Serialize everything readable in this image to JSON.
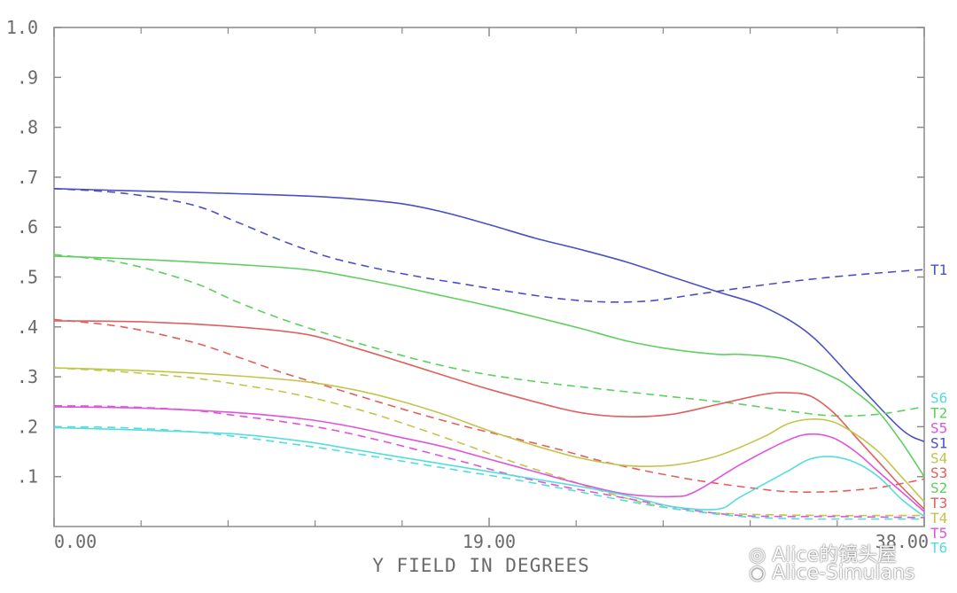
{
  "chart_data": {
    "type": "line",
    "xlabel": "Y FIELD IN DEGREES",
    "ylabel": "",
    "xlim": [
      0,
      38
    ],
    "ylim": [
      0,
      1.0
    ],
    "x_tick_labels": [
      {
        "x": 0,
        "label": "0.00"
      },
      {
        "x": 19,
        "label": "19.00"
      },
      {
        "x": 38,
        "label": "38.00"
      }
    ],
    "x_minor_ticks": [
      3.8,
      7.6,
      11.4,
      15.2,
      22.8,
      26.6,
      30.4,
      34.2
    ],
    "y_tick_labels": [
      {
        "y": 0.1,
        "label": ".1"
      },
      {
        "y": 0.2,
        "label": ".2"
      },
      {
        "y": 0.3,
        "label": ".3"
      },
      {
        "y": 0.4,
        "label": ".4"
      },
      {
        "y": 0.5,
        "label": ".5"
      },
      {
        "y": 0.6,
        "label": ".6"
      },
      {
        "y": 0.7,
        "label": ".7"
      },
      {
        "y": 0.8,
        "label": ".8"
      },
      {
        "y": 0.9,
        "label": ".9"
      },
      {
        "y": 1.0,
        "label": "1.0"
      }
    ],
    "series": [
      {
        "name": "S1",
        "color": "#4a4fc4",
        "dash": "solid",
        "points": [
          [
            0,
            0.677
          ],
          [
            4,
            0.672
          ],
          [
            8,
            0.667
          ],
          [
            12,
            0.66
          ],
          [
            15,
            0.648
          ],
          [
            17,
            0.63
          ],
          [
            19,
            0.605
          ],
          [
            21,
            0.578
          ],
          [
            23,
            0.555
          ],
          [
            25,
            0.53
          ],
          [
            27,
            0.5
          ],
          [
            29,
            0.47
          ],
          [
            31,
            0.44
          ],
          [
            33,
            0.385
          ],
          [
            35,
            0.29
          ],
          [
            37,
            0.195
          ],
          [
            38,
            0.17
          ]
        ]
      },
      {
        "name": "T1",
        "color": "#4a4fc4",
        "dash": "dashed",
        "points": [
          [
            0,
            0.677
          ],
          [
            3,
            0.668
          ],
          [
            6,
            0.645
          ],
          [
            8,
            0.61
          ],
          [
            10,
            0.572
          ],
          [
            12,
            0.54
          ],
          [
            14,
            0.518
          ],
          [
            16,
            0.5
          ],
          [
            18,
            0.485
          ],
          [
            20,
            0.47
          ],
          [
            22,
            0.457
          ],
          [
            24,
            0.45
          ],
          [
            26,
            0.452
          ],
          [
            28,
            0.465
          ],
          [
            30,
            0.478
          ],
          [
            32,
            0.49
          ],
          [
            34,
            0.5
          ],
          [
            36,
            0.508
          ],
          [
            38,
            0.515
          ]
        ]
      },
      {
        "name": "S2",
        "color": "#5fcf5f",
        "dash": "solid",
        "points": [
          [
            0,
            0.542
          ],
          [
            4,
            0.535
          ],
          [
            8,
            0.525
          ],
          [
            11,
            0.515
          ],
          [
            13,
            0.5
          ],
          [
            15,
            0.482
          ],
          [
            17,
            0.462
          ],
          [
            19,
            0.442
          ],
          [
            21,
            0.42
          ],
          [
            23,
            0.397
          ],
          [
            25,
            0.372
          ],
          [
            27,
            0.355
          ],
          [
            29,
            0.345
          ],
          [
            30,
            0.345
          ],
          [
            32,
            0.335
          ],
          [
            34,
            0.3
          ],
          [
            35,
            0.27
          ],
          [
            36,
            0.23
          ],
          [
            37,
            0.17
          ],
          [
            38,
            0.1
          ]
        ]
      },
      {
        "name": "T2",
        "color": "#5fcf5f",
        "dash": "dashed",
        "points": [
          [
            0,
            0.545
          ],
          [
            3,
            0.528
          ],
          [
            6,
            0.49
          ],
          [
            8,
            0.45
          ],
          [
            10,
            0.415
          ],
          [
            12,
            0.385
          ],
          [
            14,
            0.358
          ],
          [
            16,
            0.333
          ],
          [
            18,
            0.312
          ],
          [
            20,
            0.297
          ],
          [
            22,
            0.285
          ],
          [
            24,
            0.275
          ],
          [
            26,
            0.265
          ],
          [
            28,
            0.255
          ],
          [
            30,
            0.245
          ],
          [
            32,
            0.232
          ],
          [
            34,
            0.222
          ],
          [
            36,
            0.225
          ],
          [
            38,
            0.24
          ]
        ]
      },
      {
        "name": "S3",
        "color": "#e06060",
        "dash": "solid",
        "points": [
          [
            0,
            0.412
          ],
          [
            4,
            0.41
          ],
          [
            8,
            0.4
          ],
          [
            11,
            0.385
          ],
          [
            13,
            0.36
          ],
          [
            15,
            0.332
          ],
          [
            17,
            0.303
          ],
          [
            19,
            0.275
          ],
          [
            21,
            0.25
          ],
          [
            23,
            0.228
          ],
          [
            25,
            0.22
          ],
          [
            27,
            0.225
          ],
          [
            29,
            0.245
          ],
          [
            31,
            0.265
          ],
          [
            32,
            0.268
          ],
          [
            33,
            0.262
          ],
          [
            34,
            0.23
          ],
          [
            35,
            0.18
          ],
          [
            36,
            0.13
          ],
          [
            37,
            0.08
          ],
          [
            38,
            0.035
          ]
        ]
      },
      {
        "name": "T3",
        "color": "#e06060",
        "dash": "dashed",
        "points": [
          [
            0,
            0.415
          ],
          [
            3,
            0.4
          ],
          [
            6,
            0.37
          ],
          [
            8,
            0.34
          ],
          [
            10,
            0.308
          ],
          [
            12,
            0.28
          ],
          [
            14,
            0.252
          ],
          [
            16,
            0.225
          ],
          [
            18,
            0.2
          ],
          [
            20,
            0.178
          ],
          [
            22,
            0.155
          ],
          [
            24,
            0.13
          ],
          [
            26,
            0.11
          ],
          [
            28,
            0.093
          ],
          [
            30,
            0.08
          ],
          [
            32,
            0.07
          ],
          [
            34,
            0.07
          ],
          [
            36,
            0.078
          ],
          [
            38,
            0.095
          ]
        ]
      },
      {
        "name": "S4",
        "color": "#c4c44a",
        "dash": "solid",
        "points": [
          [
            0,
            0.318
          ],
          [
            4,
            0.312
          ],
          [
            8,
            0.302
          ],
          [
            11,
            0.29
          ],
          [
            13,
            0.275
          ],
          [
            15,
            0.253
          ],
          [
            17,
            0.225
          ],
          [
            19,
            0.192
          ],
          [
            21,
            0.162
          ],
          [
            23,
            0.137
          ],
          [
            25,
            0.122
          ],
          [
            27,
            0.123
          ],
          [
            29,
            0.142
          ],
          [
            31,
            0.18
          ],
          [
            32,
            0.205
          ],
          [
            33,
            0.215
          ],
          [
            34,
            0.21
          ],
          [
            35,
            0.185
          ],
          [
            36,
            0.15
          ],
          [
            37,
            0.1
          ],
          [
            38,
            0.05
          ]
        ]
      },
      {
        "name": "T4",
        "color": "#c4c44a",
        "dash": "dashed",
        "points": [
          [
            0,
            0.318
          ],
          [
            3,
            0.31
          ],
          [
            6,
            0.298
          ],
          [
            8,
            0.285
          ],
          [
            10,
            0.27
          ],
          [
            12,
            0.25
          ],
          [
            14,
            0.225
          ],
          [
            16,
            0.195
          ],
          [
            18,
            0.163
          ],
          [
            20,
            0.13
          ],
          [
            22,
            0.1
          ],
          [
            24,
            0.07
          ],
          [
            26,
            0.045
          ],
          [
            28,
            0.03
          ],
          [
            30,
            0.025
          ],
          [
            32,
            0.023
          ],
          [
            34,
            0.022
          ],
          [
            36,
            0.022
          ],
          [
            38,
            0.022
          ]
        ]
      },
      {
        "name": "S5",
        "color": "#dd55dd",
        "dash": "solid",
        "points": [
          [
            0,
            0.24
          ],
          [
            4,
            0.237
          ],
          [
            8,
            0.228
          ],
          [
            11,
            0.215
          ],
          [
            13,
            0.2
          ],
          [
            15,
            0.18
          ],
          [
            17,
            0.16
          ],
          [
            19,
            0.135
          ],
          [
            21,
            0.11
          ],
          [
            23,
            0.085
          ],
          [
            25,
            0.065
          ],
          [
            27,
            0.06
          ],
          [
            28,
            0.07
          ],
          [
            30,
            0.125
          ],
          [
            32,
            0.172
          ],
          [
            33,
            0.185
          ],
          [
            34,
            0.178
          ],
          [
            35,
            0.15
          ],
          [
            36,
            0.11
          ],
          [
            37,
            0.07
          ],
          [
            38,
            0.03
          ]
        ]
      },
      {
        "name": "T5",
        "color": "#dd55dd",
        "dash": "dashed",
        "points": [
          [
            0,
            0.242
          ],
          [
            3,
            0.24
          ],
          [
            6,
            0.233
          ],
          [
            8,
            0.222
          ],
          [
            10,
            0.21
          ],
          [
            12,
            0.195
          ],
          [
            14,
            0.175
          ],
          [
            16,
            0.152
          ],
          [
            18,
            0.128
          ],
          [
            20,
            0.103
          ],
          [
            22,
            0.082
          ],
          [
            24,
            0.065
          ],
          [
            26,
            0.048
          ],
          [
            28,
            0.032
          ],
          [
            30,
            0.022
          ],
          [
            32,
            0.02
          ],
          [
            34,
            0.02
          ],
          [
            36,
            0.019
          ],
          [
            38,
            0.018
          ]
        ]
      },
      {
        "name": "S6",
        "color": "#55dddd",
        "dash": "solid",
        "points": [
          [
            0,
            0.198
          ],
          [
            4,
            0.193
          ],
          [
            8,
            0.185
          ],
          [
            11,
            0.17
          ],
          [
            13,
            0.155
          ],
          [
            15,
            0.14
          ],
          [
            17,
            0.125
          ],
          [
            19,
            0.11
          ],
          [
            21,
            0.095
          ],
          [
            23,
            0.08
          ],
          [
            25,
            0.062
          ],
          [
            27,
            0.04
          ],
          [
            29,
            0.035
          ],
          [
            30,
            0.06
          ],
          [
            32,
            0.11
          ],
          [
            33,
            0.135
          ],
          [
            34,
            0.14
          ],
          [
            35,
            0.128
          ],
          [
            36,
            0.1
          ],
          [
            37,
            0.055
          ],
          [
            38,
            0.02
          ]
        ]
      },
      {
        "name": "T6",
        "color": "#55dddd",
        "dash": "dashed",
        "points": [
          [
            0,
            0.2
          ],
          [
            3,
            0.198
          ],
          [
            6,
            0.19
          ],
          [
            8,
            0.18
          ],
          [
            10,
            0.168
          ],
          [
            12,
            0.155
          ],
          [
            14,
            0.14
          ],
          [
            16,
            0.125
          ],
          [
            18,
            0.11
          ],
          [
            20,
            0.095
          ],
          [
            22,
            0.078
          ],
          [
            24,
            0.06
          ],
          [
            26,
            0.043
          ],
          [
            28,
            0.03
          ],
          [
            30,
            0.02
          ],
          [
            32,
            0.016
          ],
          [
            34,
            0.015
          ],
          [
            36,
            0.015
          ],
          [
            38,
            0.015
          ]
        ]
      }
    ],
    "right_labels": [
      {
        "text": "T1",
        "series": "T1",
        "y": 0.515
      },
      {
        "text": "S6",
        "series": "S6",
        "y": 0.258
      },
      {
        "text": "T2",
        "series": "T2",
        "y": 0.228
      },
      {
        "text": "S5",
        "series": "S5",
        "y": 0.198
      },
      {
        "text": "S1",
        "series": "S1",
        "y": 0.168
      },
      {
        "text": "S4",
        "series": "S4",
        "y": 0.138
      },
      {
        "text": "S3",
        "series": "S3",
        "y": 0.108
      },
      {
        "text": "S2",
        "series": "S2",
        "y": 0.078
      },
      {
        "text": "T3",
        "series": "T3",
        "y": 0.048
      },
      {
        "text": "T4",
        "series": "T4",
        "y": 0.018
      },
      {
        "text": "T5",
        "series": "T5",
        "y": -0.012
      },
      {
        "text": "T6",
        "series": "T6",
        "y": -0.042
      }
    ],
    "grid": false,
    "legend": "right"
  },
  "watermark": {
    "line1": "Alice的镜头屋",
    "line2": "Alice-Simulans",
    "icon": "weibo-icon"
  }
}
